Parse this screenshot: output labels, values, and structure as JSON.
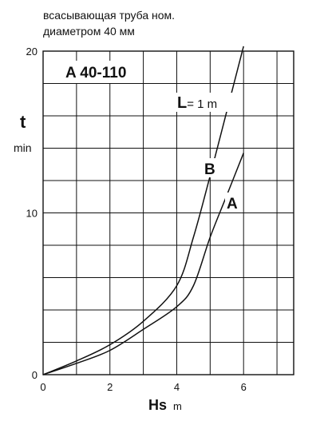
{
  "chart_data": {
    "type": "line",
    "subtitle_lines": [
      "всасывающая труба ном.",
      "диаметром 40 мм"
    ],
    "title": "A 40-110",
    "pipe_length_label": {
      "letter": "L",
      "rest": "= 1 m"
    },
    "ylabel": {
      "symbol": "t",
      "unit": "min"
    },
    "xlabel": {
      "symbol": "Hs",
      "unit": "m"
    },
    "xlim": [
      0,
      7.5
    ],
    "ylim": [
      0,
      20
    ],
    "x_ticks": [
      0,
      2,
      4,
      6
    ],
    "y_ticks": [
      0,
      10,
      20
    ],
    "x_tick_labels": [
      "0",
      "2",
      "4",
      "6"
    ],
    "y_tick_labels": [
      "0",
      "10",
      "20"
    ],
    "grid": true,
    "series": [
      {
        "name": "B",
        "x": [
          0,
          1,
          2,
          3,
          4,
          4.5,
          5,
          5.5,
          6
        ],
        "y": [
          0,
          0.85,
          1.85,
          3.3,
          5.5,
          8.5,
          12.3,
          16.3,
          20.3
        ]
      },
      {
        "name": "A",
        "x": [
          0,
          1,
          2,
          3,
          4,
          4.5,
          5,
          5.5,
          6
        ],
        "y": [
          0,
          0.7,
          1.5,
          2.8,
          4.2,
          5.5,
          8.5,
          11.1,
          13.7
        ]
      }
    ]
  }
}
